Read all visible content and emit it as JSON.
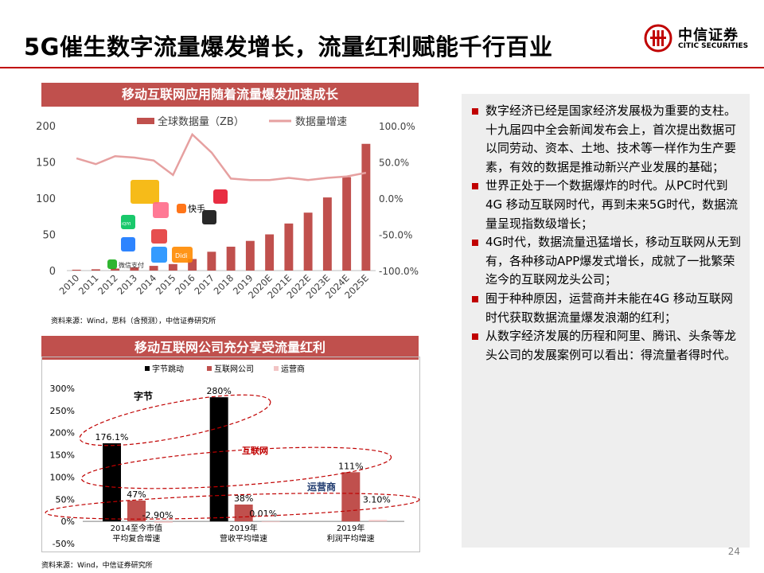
{
  "title": "5G催生数字流量爆发增长，流量红利赋能千行百业",
  "logo": {
    "cn": "中信证券",
    "en": "CITIC SECURITIES"
  },
  "page_number": "24",
  "left_top": {
    "banner": "移动互联网应用随着流量爆发加速成长",
    "source": "资料来源：Wind，思科（含预测），中信证券研究所",
    "app_icons": [
      "kangaroo-icon",
      "meitu-icon",
      "iqiyi-icon",
      "alipay-icon",
      "wechat-pay-icon",
      "eleme-icon",
      "didi-icon",
      "meituan-icon",
      "kuaishou-icon",
      "tiktok-icon",
      "weibo-icon"
    ],
    "app_labels": {
      "kuaishou": "快手",
      "wechat_pay": "微信支付",
      "didi": "Didi",
      "iqiyi": "iQIYI"
    }
  },
  "left_bottom": {
    "banner": "移动互联网公司充分享受流量红利",
    "source": "资料来源：Wind，中信证券研究所",
    "annotations": [
      "字节",
      "互联网",
      "运营商"
    ]
  },
  "bullets": [
    "数字经济已经是国家经济发展极为重要的支柱。十九届四中全会新闻发布会上，首次提出数据可以同劳动、资本、土地、技术等一样作为生产要素，有效的数据是推动新兴产业发展的基础；",
    "世界正处于一个数据爆炸的时代。从PC时代到4G 移动互联网时代，再到未来5G时代，数据流量呈现指数级增长；",
    "4G时代，数据流量迅猛增长，移动互联网从无到有，各种移动APP爆发式增长，成就了一批繁荣迄今的互联网龙头公司；",
    "囿于种种原因，运营商并未能在4G 移动互联网时代获取数据流量爆发浪潮的红利；",
    "从数字经济发展的历程和阿里、腾讯、头条等龙头公司的发展案例可以看出：得流量者得时代。"
  ],
  "colors": {
    "accent": "#c00000",
    "bar_red": "#c0504d",
    "line_pink": "#e6a0a0",
    "panel_bg": "#eeeeee",
    "black_bar": "#000000",
    "operator_bar": "#f2c4c4"
  },
  "chart_data": [
    {
      "type": "bar",
      "title": "移动互联网应用随着流量爆发加速成长",
      "categories": [
        "2010",
        "2011",
        "2012",
        "2013",
        "2014",
        "2015",
        "2016",
        "2017",
        "2018",
        "2019",
        "2020E",
        "2021E",
        "2022E",
        "2023E",
        "2024E",
        "2025E"
      ],
      "series": [
        {
          "name": "全球数据量（ZB）",
          "type": "bar",
          "axis": "left",
          "values": [
            1.2,
            1.8,
            2.8,
            4.5,
            6.5,
            9,
            16,
            26,
            33,
            41,
            50,
            65,
            80,
            101,
            129,
            175
          ]
        },
        {
          "name": "数据量增速",
          "type": "line",
          "axis": "right",
          "values": [
            55,
            47,
            58,
            56,
            52,
            32,
            88,
            63,
            27,
            25,
            25,
            28,
            25,
            28,
            30,
            35
          ]
        }
      ],
      "ylim": [
        0,
        200
      ],
      "yticks": [
        "0",
        "50",
        "100",
        "150",
        "200"
      ],
      "y2lim": [
        -100,
        100
      ],
      "y2ticks": [
        "100.0%",
        "50.0%",
        "0.0%",
        "-50.0%",
        "-100.0%"
      ],
      "legend": "top",
      "grid": false
    },
    {
      "type": "bar",
      "title": "移动互联网公司充分享受流量红利",
      "categories": [
        "2014至今市值\n平均复合增速",
        "2019年\n营收平均增速",
        "2019年\n利润平均增速"
      ],
      "category_lines": [
        [
          "2014至今市值",
          "平均复合增速"
        ],
        [
          "2019年",
          "营收平均增速"
        ],
        [
          "2019年",
          "利润平均增速"
        ]
      ],
      "series": [
        {
          "name": "字节跳动",
          "values": [
            176.1,
            280,
            null
          ],
          "labels": [
            "176.1%",
            "280%",
            ""
          ]
        },
        {
          "name": "互联网公司",
          "values": [
            47,
            38,
            111
          ],
          "labels": [
            "47%",
            "38%",
            "111%"
          ]
        },
        {
          "name": "运营商",
          "values": [
            -2.9,
            0.01,
            3.1
          ],
          "labels": [
            "-2.90%",
            "0.01%",
            "3.10%"
          ]
        }
      ],
      "ylim": [
        -50,
        300
      ],
      "yticks": [
        "300%",
        "250%",
        "200%",
        "150%",
        "100%",
        "50%",
        "0%",
        "-50%"
      ],
      "legend": "top",
      "grid": false
    }
  ]
}
